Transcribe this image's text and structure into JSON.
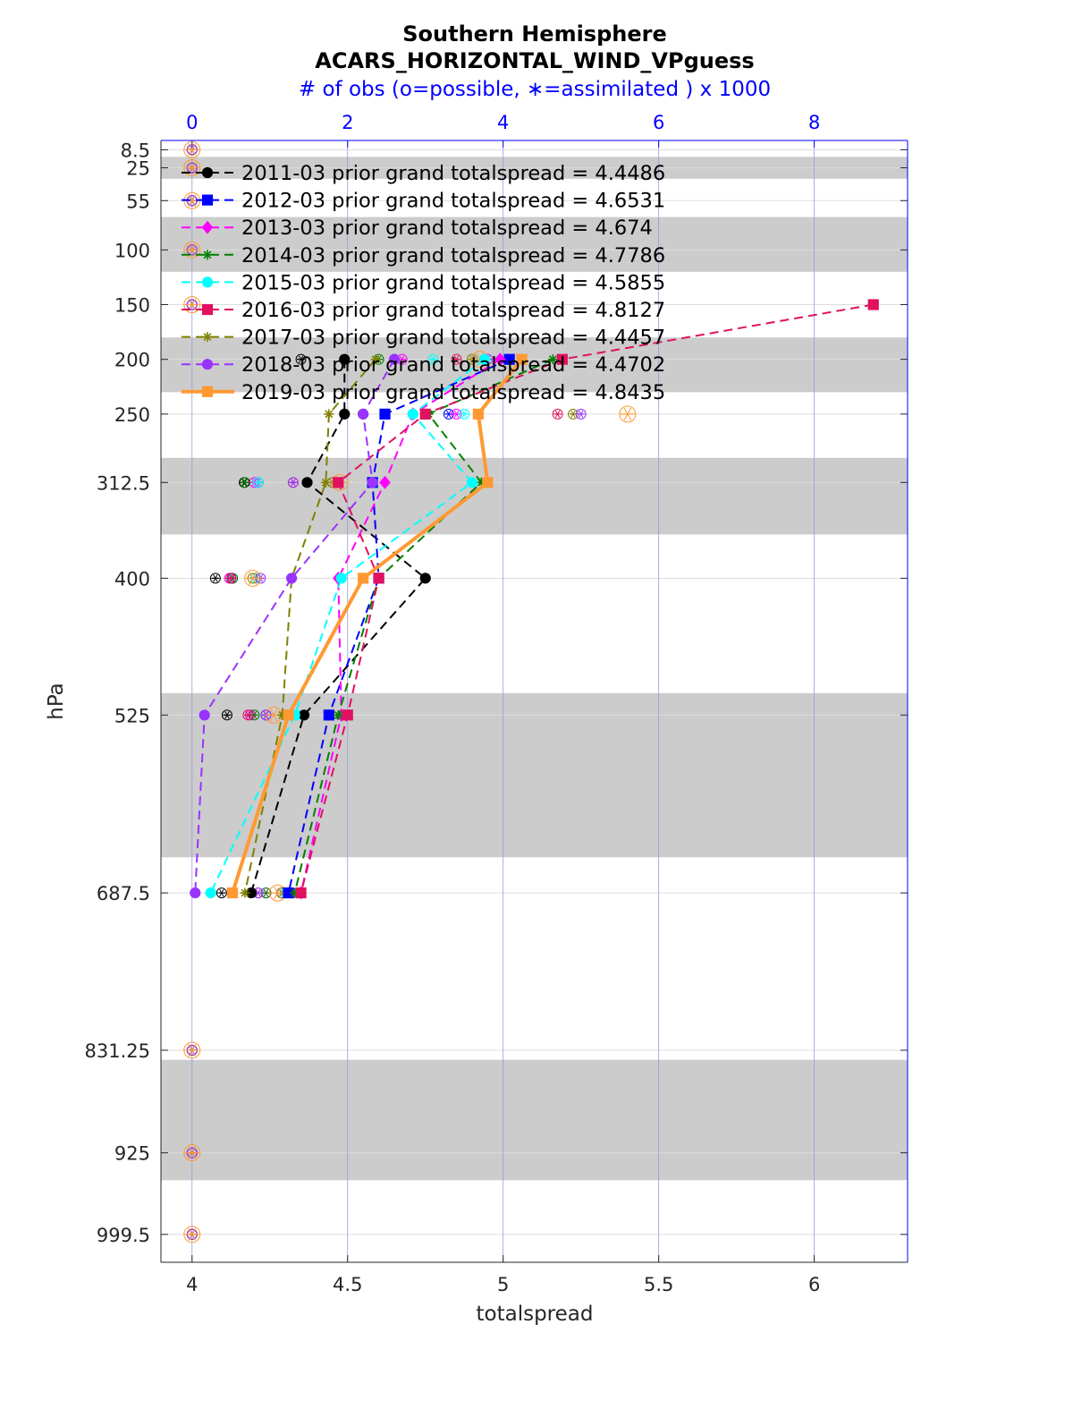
{
  "chart_data": {
    "type": "line",
    "title": "Southern Hemisphere",
    "subtitle": "ACARS_HORIZONTAL_WIND_VPguess",
    "top_axis_label": "# of obs (o=possible, ∗=assimilated ) x 1000",
    "xlabel": "totalspread",
    "ylabel": "hPa",
    "xlim": [
      3.9,
      6.3
    ],
    "x_ticks": [
      4,
      4.5,
      5,
      5.5,
      6
    ],
    "x_tick_labels": [
      "4",
      "4.5",
      "5",
      "5.5",
      "6"
    ],
    "top_xlim": [
      -0.4,
      9.2
    ],
    "top_ticks": [
      0,
      2,
      4,
      6,
      8
    ],
    "top_tick_labels": [
      "0",
      "2",
      "4",
      "6",
      "8"
    ],
    "ylim": [
      1025,
      0
    ],
    "y_reversed": true,
    "y_ticks": [
      8.5,
      25,
      55,
      100,
      150,
      200,
      250,
      312.5,
      400,
      525,
      687.5,
      831.25,
      925,
      999.5
    ],
    "y_tick_labels": [
      "8.5",
      "25",
      "55",
      "100",
      "150",
      "200",
      "250",
      "312.5",
      "400",
      "525",
      "687.5",
      "831.25",
      "925",
      "999.5"
    ],
    "gray_bands": [
      [
        15,
        35
      ],
      [
        70,
        120
      ],
      [
        180,
        230
      ],
      [
        290,
        360
      ],
      [
        505,
        655
      ],
      [
        840,
        950
      ],
      [
        1035,
        1125
      ]
    ],
    "legend_position": "top-left",
    "series": [
      {
        "name": "2011-03 prior grand totalspread = 4.4486",
        "color": "#000000",
        "marker": "circle",
        "dash": true,
        "levels": [
          200,
          250,
          312.5,
          400,
          525,
          687.5
        ],
        "values": [
          4.49,
          4.49,
          4.37,
          4.75,
          4.36,
          4.19
        ]
      },
      {
        "name": "2012-03 prior grand totalspread = 4.6531",
        "color": "#0000ff",
        "marker": "square",
        "dash": true,
        "levels": [
          200,
          250,
          312.5,
          400,
          525,
          687.5
        ],
        "values": [
          5.02,
          4.62,
          4.58,
          4.6,
          4.44,
          4.31
        ]
      },
      {
        "name": "2013-03 prior grand totalspread = 4.674",
        "color": "#ff00ff",
        "marker": "diamond",
        "dash": true,
        "levels": [
          200,
          250,
          312.5,
          400,
          525,
          687.5
        ],
        "values": [
          4.99,
          4.71,
          4.62,
          4.47,
          4.48,
          4.35
        ]
      },
      {
        "name": "2014-03 prior grand totalspread = 4.7786",
        "color": "#008000",
        "marker": "star",
        "dash": true,
        "levels": [
          200,
          250,
          312.5,
          400,
          525,
          687.5
        ],
        "values": [
          5.16,
          4.76,
          4.93,
          4.6,
          4.47,
          4.33
        ]
      },
      {
        "name": "2015-03 prior grand totalspread = 4.5855",
        "color": "#00ffff",
        "marker": "circle",
        "dash": true,
        "levels": [
          200,
          250,
          312.5,
          400,
          525,
          687.5
        ],
        "values": [
          4.94,
          4.71,
          4.9,
          4.48,
          4.33,
          4.06
        ]
      },
      {
        "name": "2016-03 prior grand totalspread = 4.8127",
        "color": "#e0115f",
        "marker": "square",
        "dash": true,
        "levels": [
          150,
          200,
          250,
          312.5,
          400,
          525,
          687.5
        ],
        "values": [
          6.19,
          5.19,
          4.75,
          4.47,
          4.6,
          4.5,
          4.35
        ]
      },
      {
        "name": "2017-03 prior grand totalspread = 4.4457",
        "color": "#808000",
        "marker": "star",
        "dash": true,
        "levels": [
          200,
          250,
          312.5,
          400,
          525,
          687.5
        ],
        "values": [
          4.59,
          4.44,
          4.43,
          4.32,
          4.29,
          4.17
        ]
      },
      {
        "name": "2018-03 prior grand totalspread = 4.4702",
        "color": "#9933ff",
        "marker": "circle",
        "dash": true,
        "levels": [
          200,
          250,
          312.5,
          400,
          525,
          687.5
        ],
        "values": [
          4.65,
          4.55,
          4.58,
          4.32,
          4.04,
          4.01
        ]
      },
      {
        "name": "2019-03 prior grand totalspread = 4.8435",
        "color": "#ff9933",
        "marker": "square",
        "dash": false,
        "levels": [
          200,
          250,
          312.5,
          400,
          525,
          687.5
        ],
        "values": [
          5.06,
          4.92,
          4.95,
          4.55,
          4.31,
          4.13
        ]
      }
    ],
    "obs_counts": {
      "note": "observation counts (x1000) on top axis per level; same value for possible and assimilated",
      "levels": [
        200,
        250,
        312.5,
        400,
        525,
        687.5
      ],
      "by_series": [
        [
          1.4,
          2.2,
          0.67,
          0.3,
          0.45,
          0.38
        ],
        [
          2.6,
          3.3,
          0.85,
          0.52,
          0.95,
          1.15
        ],
        [
          2.7,
          3.4,
          0.8,
          0.48,
          0.75,
          0.95
        ],
        [
          2.4,
          3.0,
          0.68,
          0.52,
          0.8,
          0.95
        ],
        [
          3.1,
          3.5,
          0.85,
          0.82,
          1.35,
          1.2
        ],
        [
          3.4,
          4.7,
          1.3,
          0.5,
          0.72,
          0.85
        ],
        [
          3.6,
          4.9,
          1.8,
          0.78,
          1.2,
          1.15
        ],
        [
          3.8,
          5.0,
          1.3,
          0.88,
          0.95,
          0.85
        ],
        [
          3.7,
          5.6,
          1.9,
          0.78,
          1.05,
          1.1
        ]
      ],
      "zero_levels": [
        8.5,
        25,
        55,
        100,
        150,
        831.25,
        925,
        999.5
      ]
    }
  }
}
